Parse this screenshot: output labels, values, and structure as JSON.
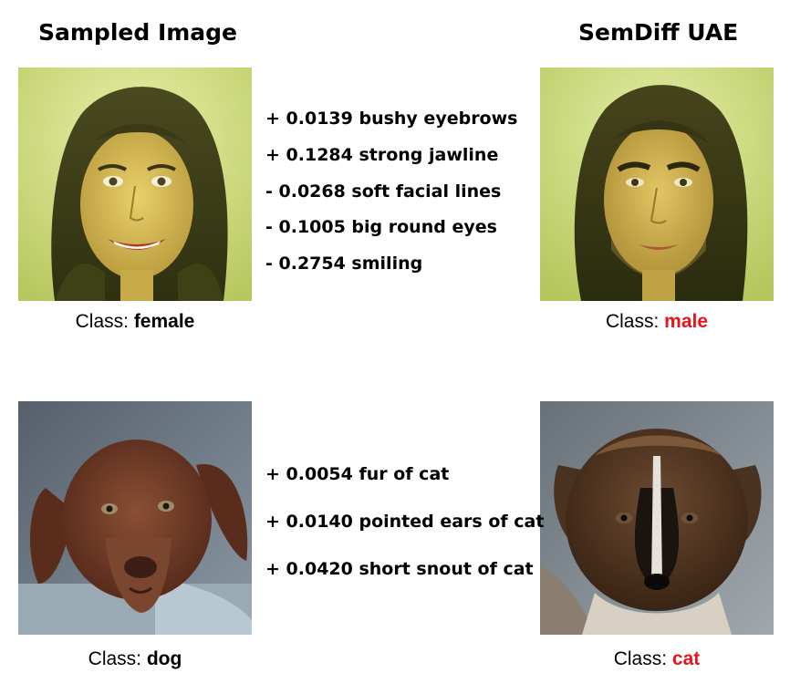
{
  "headers": {
    "left": "Sampled Image",
    "right": "SemDiff UAE"
  },
  "rows": [
    {
      "original_class_prefix": "Class: ",
      "original_class": "female",
      "edited_class_prefix": "Class: ",
      "edited_class": "male",
      "changed_color": "#e8141c",
      "deltas": [
        "+ 0.0139 bushy eyebrows",
        "+ 0.1284 strong jawline",
        " - 0.0268 soft facial lines",
        " - 0.1005 big round eyes",
        " - 0.2754 smiling"
      ]
    },
    {
      "original_class_prefix": "Class: ",
      "original_class": "dog",
      "edited_class_prefix": "Class: ",
      "edited_class": "cat",
      "changed_color": "#e8141c",
      "deltas": [
        "+ 0.0054 fur of cat",
        "+ 0.0140 pointed ears of cat",
        "+ 0.0420 short snout of cat"
      ]
    }
  ]
}
